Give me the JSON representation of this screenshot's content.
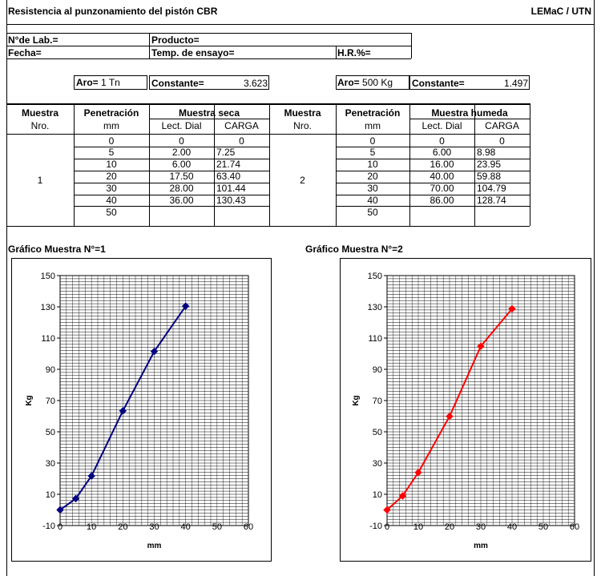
{
  "header": {
    "title": "Resistencia al punzonamiento del pistón CBR",
    "org": "LEMaC / UTN"
  },
  "info": {
    "lab_label": "N°de Lab.=",
    "producto_label": "Producto=",
    "fecha_label": "Fecha=",
    "temp_label": "Temp. de ensayo=",
    "hr_label": "H.R.%="
  },
  "aro1": {
    "label": "Aro=",
    "value": "1 Tn",
    "const_label": "Constante=",
    "const_value": "3.623"
  },
  "aro2": {
    "label": "Aro=",
    "value": "500 Kg",
    "const_label": "Constante=",
    "const_value": "1.497"
  },
  "table": {
    "col_muestra": "Muestra",
    "col_nro": "Nro.",
    "col_penetracion": "Penetración",
    "col_mm": "mm",
    "col_seca": "Muestra seca",
    "col_humeda": "Muestra humeda",
    "col_lect": "Lect. Dial",
    "col_carga": "CARGA",
    "left": {
      "muestra": "1",
      "rows": [
        {
          "pen": "0",
          "lect": "0",
          "carga": "0"
        },
        {
          "pen": "5",
          "lect": "2.00",
          "carga": "7.25"
        },
        {
          "pen": "10",
          "lect": "6.00",
          "carga": "21.74"
        },
        {
          "pen": "20",
          "lect": "17.50",
          "carga": "63.40"
        },
        {
          "pen": "30",
          "lect": "28.00",
          "carga": "101.44"
        },
        {
          "pen": "40",
          "lect": "36.00",
          "carga": "130.43"
        },
        {
          "pen": "50",
          "lect": "",
          "carga": ""
        }
      ]
    },
    "right": {
      "muestra": "2",
      "rows": [
        {
          "pen": "0",
          "lect": "0",
          "carga": "0"
        },
        {
          "pen": "5",
          "lect": "6.00",
          "carga": "8.98"
        },
        {
          "pen": "10",
          "lect": "16.00",
          "carga": "23.95"
        },
        {
          "pen": "20",
          "lect": "40.00",
          "carga": "59.88"
        },
        {
          "pen": "30",
          "lect": "70.00",
          "carga": "104.79"
        },
        {
          "pen": "40",
          "lect": "86.00",
          "carga": "128.74"
        },
        {
          "pen": "50",
          "lect": "",
          "carga": ""
        }
      ]
    }
  },
  "charts": {
    "left_title": "Gráfico Muestra N°=1",
    "right_title": "Gráfico Muestra N°=2"
  },
  "chart_data": [
    {
      "type": "line",
      "xlabel": "mm",
      "ylabel": "Kg",
      "xlim": [
        0,
        60
      ],
      "ylim": [
        -10,
        150
      ],
      "xticks": [
        0,
        10,
        20,
        30,
        40,
        50,
        60
      ],
      "yticks": [
        -10,
        10,
        30,
        50,
        70,
        90,
        110,
        130,
        150
      ],
      "grid": true,
      "color": "#000080",
      "series": [
        {
          "x": [
            0,
            5,
            10,
            20,
            30,
            40
          ],
          "y": [
            0,
            7.25,
            21.74,
            63.4,
            101.44,
            130.43
          ]
        }
      ]
    },
    {
      "type": "line",
      "xlabel": "mm",
      "ylabel": "Kg",
      "xlim": [
        0,
        60
      ],
      "ylim": [
        -10,
        150
      ],
      "xticks": [
        0,
        10,
        20,
        30,
        40,
        50,
        60
      ],
      "yticks": [
        -10,
        10,
        30,
        50,
        70,
        90,
        110,
        130,
        150
      ],
      "grid": true,
      "color": "#ff0000",
      "series": [
        {
          "x": [
            0,
            5,
            10,
            20,
            30,
            40
          ],
          "y": [
            0,
            8.98,
            23.95,
            59.88,
            104.79,
            128.74
          ]
        }
      ]
    }
  ]
}
